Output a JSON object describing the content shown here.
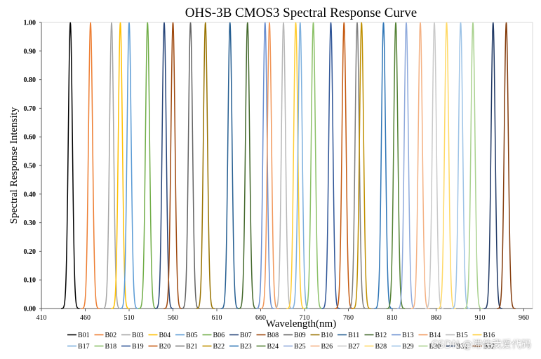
{
  "chart_data": {
    "type": "line",
    "title": "OHS-3B CMOS3 Spectral Response Curve",
    "xlabel": "Wavelength(nm)",
    "ylabel": "Spectral Response Intensity",
    "xlim": [
      410,
      970
    ],
    "ylim": [
      0,
      1
    ],
    "x_ticks": [
      "410",
      "460",
      "510",
      "560",
      "610",
      "660",
      "710",
      "760",
      "810",
      "860",
      "910",
      "960"
    ],
    "y_ticks": [
      "0.00",
      "0.10",
      "0.20",
      "0.30",
      "0.40",
      "0.50",
      "0.60",
      "0.70",
      "0.80",
      "0.90",
      "1.00"
    ],
    "peak_fwhm_nm": 5.5,
    "series": [
      {
        "name": "B01",
        "peak": 443,
        "color": "#000000"
      },
      {
        "name": "B02",
        "peak": 466,
        "color": "#ed7d31"
      },
      {
        "name": "B03",
        "peak": 490,
        "color": "#a5a5a5"
      },
      {
        "name": "B04",
        "peak": 500,
        "color": "#ffc000"
      },
      {
        "name": "B05",
        "peak": 510,
        "color": "#5b9bd5"
      },
      {
        "name": "B06",
        "peak": 531,
        "color": "#70ad47"
      },
      {
        "name": "B07",
        "peak": 550,
        "color": "#264478"
      },
      {
        "name": "B08",
        "peak": 560,
        "color": "#9e480e"
      },
      {
        "name": "B09",
        "peak": 580,
        "color": "#636363"
      },
      {
        "name": "B10",
        "peak": 597,
        "color": "#997300"
      },
      {
        "name": "B11",
        "peak": 625,
        "color": "#255e91"
      },
      {
        "name": "B12",
        "peak": 645,
        "color": "#43682b"
      },
      {
        "name": "B13",
        "peak": 665,
        "color": "#698ed0"
      },
      {
        "name": "B14",
        "peak": 670,
        "color": "#f1975a"
      },
      {
        "name": "B15",
        "peak": 686,
        "color": "#b7b7b7"
      },
      {
        "name": "B16",
        "peak": 700,
        "color": "#ffcd33"
      },
      {
        "name": "B17",
        "peak": 705,
        "color": "#7cafdd"
      },
      {
        "name": "B18",
        "peak": 720,
        "color": "#8cc168"
      },
      {
        "name": "B19",
        "peak": 740,
        "color": "#2f5597"
      },
      {
        "name": "B20",
        "peak": 755,
        "color": "#c55a11"
      },
      {
        "name": "B21",
        "peak": 770,
        "color": "#7f7f7f"
      },
      {
        "name": "B22",
        "peak": 775,
        "color": "#bf8f00"
      },
      {
        "name": "B23",
        "peak": 800,
        "color": "#2e75b6"
      },
      {
        "name": "B24",
        "peak": 814,
        "color": "#548235"
      },
      {
        "name": "B25",
        "peak": 826,
        "color": "#8faadc"
      },
      {
        "name": "B26",
        "peak": 842,
        "color": "#f4b183"
      },
      {
        "name": "B27",
        "peak": 858,
        "color": "#c9c9c9"
      },
      {
        "name": "B28",
        "peak": 872,
        "color": "#ffd966"
      },
      {
        "name": "B29",
        "peak": 888,
        "color": "#9dc3e6"
      },
      {
        "name": "B30",
        "peak": 902,
        "color": "#a9d18e"
      },
      {
        "name": "B31",
        "peak": 925,
        "color": "#1f3864"
      },
      {
        "name": "B32",
        "peak": 940,
        "color": "#843c0c"
      }
    ]
  },
  "watermark": "CSDN @滞住我爱代码"
}
